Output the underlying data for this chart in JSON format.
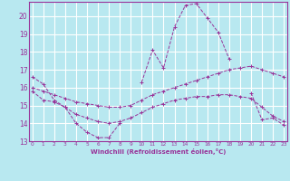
{
  "xlabel": "Windchill (Refroidissement éolien,°C)",
  "background_color": "#b8e8f0",
  "grid_color": "#ffffff",
  "line_color": "#993399",
  "spine_color": "#993399",
  "x_ticks": [
    0,
    1,
    2,
    3,
    4,
    5,
    6,
    7,
    8,
    9,
    10,
    11,
    12,
    13,
    14,
    15,
    16,
    17,
    18,
    19,
    20,
    21,
    22,
    23
  ],
  "x_tick_labels": [
    "0",
    "1",
    "2",
    "3",
    "4",
    "5",
    "6",
    "7",
    "8",
    "9",
    "10",
    "11",
    "12",
    "13",
    "14",
    "15",
    "16",
    "17",
    "18",
    "19",
    "20",
    "21",
    "22",
    "23"
  ],
  "ylim": [
    13,
    20.8
  ],
  "yticks": [
    13,
    14,
    15,
    16,
    17,
    18,
    19,
    20
  ],
  "xlim": [
    -0.3,
    23.3
  ],
  "series": [
    {
      "x": [
        0,
        1,
        2,
        3,
        4,
        5,
        6,
        7,
        8,
        9,
        10,
        11,
        12,
        13,
        14,
        15,
        16,
        17,
        18,
        19,
        20,
        21,
        22,
        23
      ],
      "y": [
        16.6,
        16.2,
        15.3,
        14.9,
        14.0,
        13.5,
        13.2,
        13.2,
        14.0,
        null,
        16.3,
        18.1,
        17.1,
        19.4,
        20.6,
        20.7,
        19.9,
        19.1,
        17.6,
        null,
        15.7,
        14.2,
        14.3,
        13.9
      ]
    },
    {
      "x": [
        0,
        1,
        2,
        3,
        4,
        5,
        6,
        7,
        8,
        9,
        10,
        11,
        12,
        13,
        14,
        15,
        16,
        17,
        18,
        19,
        20,
        21,
        22,
        23
      ],
      "y": [
        16.0,
        15.8,
        15.6,
        15.4,
        15.2,
        15.1,
        15.0,
        14.9,
        14.9,
        15.0,
        15.3,
        15.6,
        15.8,
        16.0,
        16.2,
        16.4,
        16.6,
        16.8,
        17.0,
        17.1,
        17.2,
        17.0,
        16.8,
        16.6
      ]
    },
    {
      "x": [
        0,
        1,
        2,
        3,
        4,
        5,
        6,
        7,
        8,
        9,
        10,
        11,
        12,
        13,
        14,
        15,
        16,
        17,
        18,
        19,
        20,
        21,
        22,
        23
      ],
      "y": [
        15.8,
        15.3,
        15.2,
        14.9,
        14.5,
        14.3,
        14.1,
        14.0,
        14.1,
        14.3,
        14.6,
        14.9,
        15.1,
        15.3,
        15.4,
        15.5,
        15.5,
        15.6,
        15.6,
        15.5,
        15.4,
        14.9,
        14.4,
        14.1
      ]
    }
  ]
}
